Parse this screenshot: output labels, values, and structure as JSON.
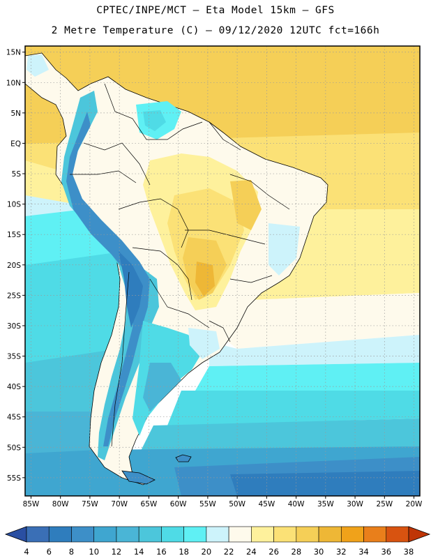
{
  "header": {
    "line1": "CPTEC/INPE/MCT –  Eta Model 15km – GFS",
    "line2": "2 Metre Temperature (C) – 09/12/2020 12UTC fct=166h"
  },
  "map": {
    "region": "South America",
    "lon_range": [
      -86,
      -19
    ],
    "lat_range": [
      -58,
      16
    ],
    "lon_tick_labels": [
      "85W",
      "80W",
      "75W",
      "70W",
      "65W",
      "60W",
      "55W",
      "50W",
      "45W",
      "40W",
      "35W",
      "30W",
      "25W",
      "20W"
    ],
    "lon_tick_values": [
      -85,
      -80,
      -75,
      -70,
      -65,
      -60,
      -55,
      -50,
      -45,
      -40,
      -35,
      -30,
      -25,
      -20
    ],
    "lat_tick_labels": [
      "15N",
      "10N",
      "5N",
      "EQ",
      "5S",
      "10S",
      "15S",
      "20S",
      "25S",
      "30S",
      "35S",
      "40S",
      "45S",
      "50S",
      "55S"
    ],
    "lat_tick_values": [
      15,
      10,
      5,
      0,
      -5,
      -10,
      -15,
      -20,
      -25,
      -30,
      -35,
      -40,
      -45,
      -50,
      -55
    ]
  },
  "colorbar": {
    "labels": [
      "4",
      "6",
      "8",
      "10",
      "12",
      "14",
      "16",
      "18",
      "20",
      "22",
      "24",
      "26",
      "28",
      "30",
      "32",
      "34",
      "36",
      "38"
    ],
    "colors": [
      "#3a6fb6",
      "#2f7dbd",
      "#3d8fc8",
      "#3fa6d0",
      "#4ab5d6",
      "#4cc6db",
      "#4fdbe6",
      "#5ff0f4",
      "#cdf3fb",
      "#fefaec",
      "#fef19c",
      "#fbe176",
      "#f5cf57",
      "#eeb736",
      "#f0a21a",
      "#e97f1b",
      "#d85310",
      "#c43c08"
    ],
    "under_color": "#2a4fa2",
    "over_color": "#bf3506"
  }
}
